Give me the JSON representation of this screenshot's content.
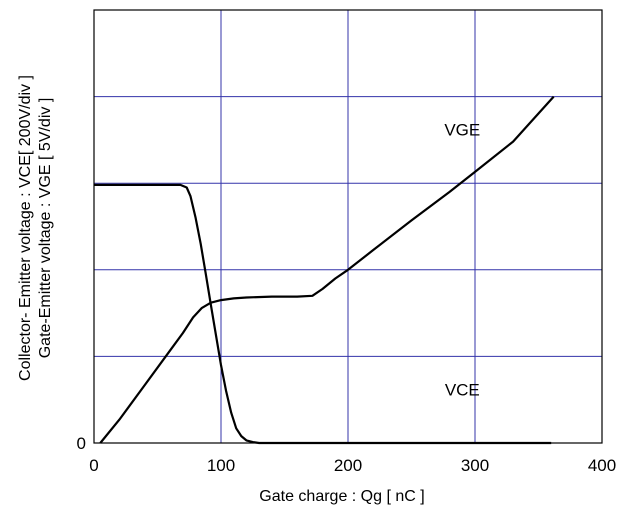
{
  "chart_data": {
    "type": "line",
    "xlabel": "Gate charge : Qg [ nC ]",
    "ylabel_line1": "Collector- Emitter voltage : VCE[ 200V/div ]",
    "ylabel_line2": "Gate-Emitter voltage : VGE [ 5V/div ]",
    "xlim": [
      0,
      400
    ],
    "ylim": [
      0,
      5
    ],
    "x_ticks": [
      0,
      100,
      200,
      300,
      400
    ],
    "y_tick_labels": [
      {
        "value": 0,
        "label": "0"
      }
    ],
    "y_divisions": 5,
    "grid": true,
    "grid_color": "#3333aa",
    "line_color": "#000000",
    "annotations": [
      {
        "text": "VGE",
        "x": 290,
        "y": 3.55
      },
      {
        "text": "VCE",
        "x": 290,
        "y": 0.55
      }
    ],
    "series": [
      {
        "name": "VCE",
        "x": [
          0,
          55,
          68,
          73,
          76,
          80,
          84,
          88,
          92,
          96,
          100,
          104,
          108,
          112,
          116,
          120,
          125,
          130,
          140,
          160,
          200,
          300,
          360
        ],
        "y": [
          2.98,
          2.98,
          2.98,
          2.95,
          2.85,
          2.6,
          2.3,
          1.95,
          1.6,
          1.25,
          0.9,
          0.6,
          0.35,
          0.17,
          0.08,
          0.03,
          0.01,
          0.0,
          0.0,
          0.0,
          0.0,
          0.0,
          0.0
        ]
      },
      {
        "name": "VGE",
        "x": [
          5,
          20,
          40,
          60,
          70,
          78,
          85,
          92,
          100,
          110,
          120,
          140,
          160,
          172,
          180,
          190,
          200,
          220,
          250,
          280,
          300,
          330,
          362
        ],
        "y": [
          0.0,
          0.27,
          0.67,
          1.07,
          1.27,
          1.45,
          1.56,
          1.62,
          1.65,
          1.67,
          1.68,
          1.69,
          1.69,
          1.7,
          1.78,
          1.9,
          2.0,
          2.23,
          2.57,
          2.9,
          3.13,
          3.48,
          4.0
        ]
      }
    ]
  }
}
